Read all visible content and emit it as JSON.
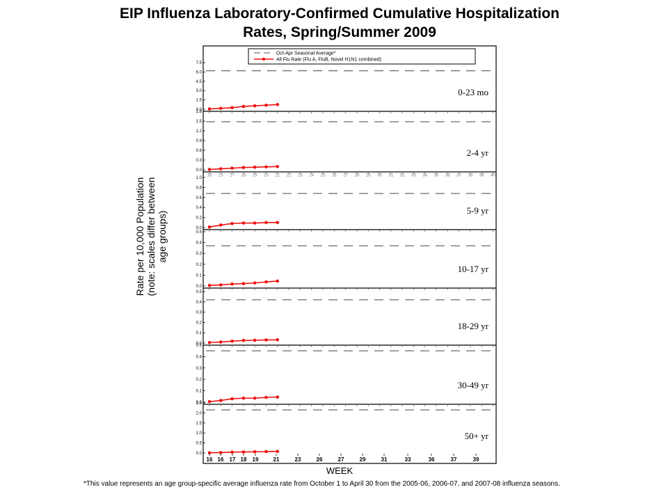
{
  "title_lines": [
    "EIP Influenza Laboratory-Confirmed Cumulative Hospitalization",
    "Rates, Spring/Summer 2009"
  ],
  "ylabel_lines": [
    "Rate per 10,000 Population",
    "(note: scales differ between",
    "age groups)"
  ],
  "xlabel": "WEEK",
  "footnote": "*This value represents an age group-specific average influenza rate from October 1 to April 30 from the 2005-06, 2006-07, and 2007-08 influenza seasons.",
  "colors": {
    "series": "#ee1111",
    "average": "#777777",
    "frame": "#000000"
  },
  "chart_data": {
    "type": "line",
    "legend": {
      "placement": "top",
      "entries": [
        "Oct-Apr Seasonal Average*",
        "All Flu Rate (Flu A, FluB, Novel H1N1 combined)"
      ]
    },
    "x_ticks": [
      "16",
      "16",
      "17",
      "18",
      "19",
      "21",
      "23",
      "26",
      "27",
      "29",
      "31",
      "33",
      "36",
      "37",
      "39"
    ],
    "panels": [
      {
        "label": "0-23 mo",
        "ylim": [
          0,
          7.5
        ],
        "y_ticks": [
          "0.0",
          "1.5",
          "3.0",
          "4.5",
          "6.0",
          "7.5"
        ],
        "average": 6.2,
        "values": [
          0.05,
          0.15,
          0.25,
          0.45,
          0.55,
          0.65,
          0.75
        ]
      },
      {
        "label": "2-4 yr",
        "ylim": [
          0,
          1.8
        ],
        "y_ticks": [
          "0.0",
          "0.3",
          "0.6",
          "0.9",
          "1.2",
          "1.5",
          "1.8"
        ],
        "average": 1.48,
        "values": [
          0.01,
          0.03,
          0.05,
          0.07,
          0.08,
          0.09,
          0.1
        ]
      },
      {
        "label": "5-9 yr",
        "ylim": [
          0,
          1.0
        ],
        "y_ticks": [
          "0.0",
          "0.2",
          "0.4",
          "0.6",
          "0.8",
          "1.0"
        ],
        "average": 0.68,
        "values": [
          0.01,
          0.05,
          0.08,
          0.09,
          0.09,
          0.1,
          0.1
        ]
      },
      {
        "label": "10-17 yr",
        "ylim": [
          0,
          0.5
        ],
        "y_ticks": [
          "0.0",
          "0.1",
          "0.2",
          "0.3",
          "0.4",
          "0.5"
        ],
        "average": 0.37,
        "values": [
          0.005,
          0.01,
          0.018,
          0.022,
          0.028,
          0.038,
          0.045
        ]
      },
      {
        "label": "18-29 yr",
        "ylim": [
          0,
          0.5
        ],
        "y_ticks": [
          "0.0",
          "0.1",
          "0.2",
          "0.3",
          "0.4",
          "0.5"
        ],
        "average": 0.42,
        "values": [
          0.005,
          0.01,
          0.018,
          0.025,
          0.027,
          0.03,
          0.032
        ]
      },
      {
        "label": "30-49 yr",
        "ylim": [
          0,
          0.5
        ],
        "y_ticks": [
          "0.0",
          "0.1",
          "0.2",
          "0.3",
          "0.4",
          "0.5"
        ],
        "average": 0.45,
        "values": [
          0.005,
          0.015,
          0.03,
          0.035,
          0.035,
          0.042,
          0.045
        ]
      },
      {
        "label": "50+ yr",
        "ylim": [
          0,
          2.5
        ],
        "y_ticks": [
          "0.0",
          "0.5",
          "1.0",
          "1.5",
          "2.0",
          "2.5"
        ],
        "average": 2.15,
        "values": [
          0.01,
          0.02,
          0.04,
          0.05,
          0.06,
          0.07,
          0.08
        ]
      }
    ]
  }
}
